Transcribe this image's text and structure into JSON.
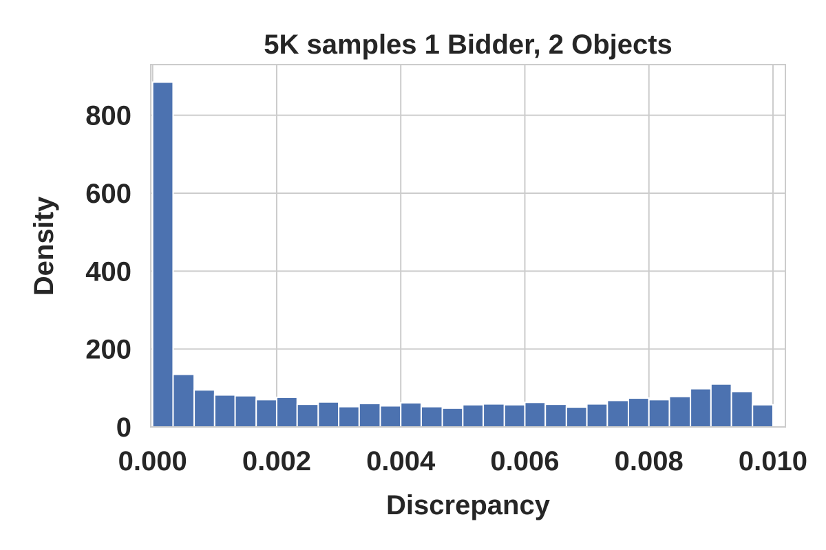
{
  "chart_data": {
    "type": "bar",
    "title": "5K samples 1 Bidder, 2 Objects",
    "xlabel": "Discrepancy",
    "ylabel": "Density",
    "xlim": [
      -3e-05,
      0.0102
    ],
    "ylim": [
      0,
      930
    ],
    "grid": true,
    "bar_color": "#4c72b0",
    "x_ticks": [
      0.0,
      0.002,
      0.004,
      0.006,
      0.008,
      0.01
    ],
    "x_tick_labels": [
      "0.000",
      "0.002",
      "0.004",
      "0.006",
      "0.008",
      "0.010"
    ],
    "y_ticks": [
      0,
      200,
      400,
      600,
      800
    ],
    "y_tick_labels": [
      "0",
      "200",
      "400",
      "600",
      "800"
    ],
    "bin_edges": [
      0.0,
      0.00033,
      0.00067,
      0.001,
      0.00133,
      0.00167,
      0.002,
      0.00233,
      0.00267,
      0.003,
      0.00333,
      0.00367,
      0.004,
      0.00433,
      0.00467,
      0.005,
      0.00533,
      0.00567,
      0.006,
      0.00633,
      0.00667,
      0.007,
      0.00733,
      0.00767,
      0.008,
      0.00833,
      0.00867,
      0.009,
      0.00933,
      0.00967,
      0.01
    ],
    "values": [
      885,
      135,
      95,
      82,
      80,
      70,
      76,
      58,
      64,
      52,
      60,
      54,
      62,
      52,
      48,
      57,
      59,
      57,
      63,
      58,
      51,
      59,
      68,
      74,
      70,
      78,
      98,
      110,
      91,
      57
    ]
  }
}
